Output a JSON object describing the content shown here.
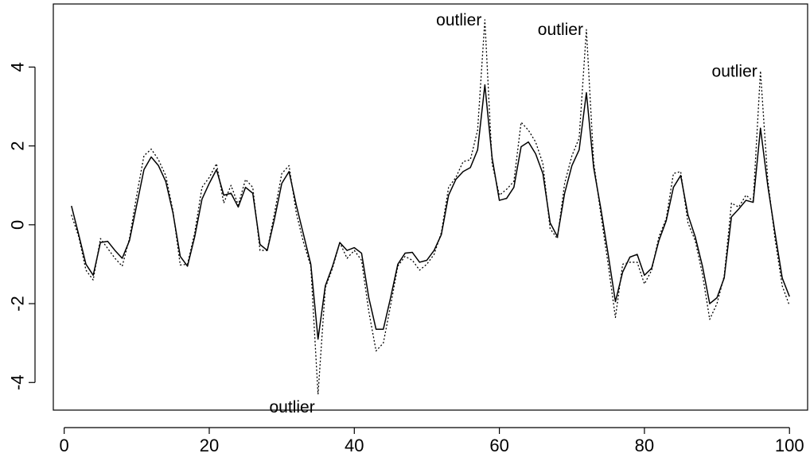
{
  "chart_data": {
    "type": "line",
    "title": "",
    "xlabel": "",
    "ylabel": "",
    "xlim": [
      -1.5,
      102.5
    ],
    "ylim": [
      -4.7,
      5.6
    ],
    "grid": false,
    "legend": "none",
    "x_ticks": [
      0,
      20,
      40,
      60,
      80,
      100
    ],
    "y_ticks": [
      -4,
      -2,
      0,
      2,
      4
    ],
    "x": [
      1,
      2,
      3,
      4,
      5,
      6,
      7,
      8,
      9,
      10,
      11,
      12,
      13,
      14,
      15,
      16,
      17,
      18,
      19,
      20,
      21,
      22,
      23,
      24,
      25,
      26,
      27,
      28,
      29,
      30,
      31,
      32,
      33,
      34,
      35,
      36,
      37,
      38,
      39,
      40,
      41,
      42,
      43,
      44,
      45,
      46,
      47,
      48,
      49,
      50,
      51,
      52,
      53,
      54,
      55,
      56,
      57,
      58,
      59,
      60,
      61,
      62,
      63,
      64,
      65,
      66,
      67,
      68,
      69,
      70,
      71,
      72,
      73,
      74,
      75,
      76,
      77,
      78,
      79,
      80,
      81,
      82,
      83,
      84,
      85,
      86,
      87,
      88,
      89,
      90,
      91,
      92,
      93,
      94,
      95,
      96,
      97,
      98,
      99,
      100
    ],
    "series": [
      {
        "style": "solid",
        "color": "#000000",
        "values": [
          0.48,
          -0.25,
          -1.0,
          -1.28,
          -0.45,
          -0.42,
          -0.65,
          -0.85,
          -0.4,
          0.5,
          1.4,
          1.72,
          1.5,
          1.1,
          0.3,
          -0.8,
          -1.05,
          -0.3,
          0.65,
          1.05,
          1.4,
          0.75,
          0.8,
          0.45,
          0.95,
          0.8,
          -0.5,
          -0.65,
          0.15,
          1.05,
          1.35,
          0.5,
          -0.25,
          -1.0,
          -2.9,
          -1.55,
          -1.05,
          -0.45,
          -0.65,
          -0.58,
          -0.72,
          -1.85,
          -2.65,
          -2.65,
          -1.85,
          -1.0,
          -0.72,
          -0.7,
          -0.95,
          -0.9,
          -0.65,
          -0.25,
          0.75,
          1.15,
          1.35,
          1.45,
          1.9,
          3.55,
          1.7,
          0.62,
          0.67,
          0.95,
          1.98,
          2.1,
          1.8,
          1.3,
          0.05,
          -0.3,
          0.8,
          1.5,
          1.9,
          3.35,
          1.45,
          0.4,
          -0.75,
          -1.95,
          -1.2,
          -0.82,
          -0.75,
          -1.28,
          -1.1,
          -0.4,
          0.1,
          0.95,
          1.25,
          0.25,
          -0.3,
          -1.05,
          -2.0,
          -1.85,
          -1.35,
          0.2,
          0.4,
          0.62,
          0.57,
          2.45,
          1.0,
          -0.2,
          -1.35,
          -1.82
        ]
      },
      {
        "style": "dotted",
        "color": "#000000",
        "values": [
          0.25,
          -0.3,
          -1.15,
          -1.4,
          -0.35,
          -0.6,
          -0.85,
          -1.05,
          -0.35,
          0.75,
          1.75,
          1.92,
          1.65,
          1.25,
          0.35,
          -1.02,
          -1.0,
          -0.2,
          0.95,
          1.2,
          1.55,
          0.55,
          1.0,
          0.5,
          1.15,
          0.95,
          -0.65,
          -0.65,
          0.3,
          1.3,
          1.5,
          0.3,
          -0.45,
          -1.05,
          -4.3,
          -1.6,
          -1.1,
          -0.45,
          -0.85,
          -0.65,
          -0.9,
          -2.2,
          -3.2,
          -3.0,
          -2.05,
          -1.05,
          -0.8,
          -0.9,
          -1.15,
          -1.0,
          -0.75,
          -0.2,
          0.95,
          1.2,
          1.6,
          1.65,
          2.4,
          5.2,
          1.55,
          0.75,
          0.9,
          1.1,
          2.6,
          2.4,
          2.1,
          1.55,
          -0.1,
          -0.35,
          1.05,
          1.75,
          2.2,
          4.95,
          1.6,
          0.25,
          -1.0,
          -2.35,
          -1.0,
          -0.95,
          -0.95,
          -1.5,
          -1.15,
          -0.3,
          0.15,
          1.3,
          1.35,
          0.05,
          -0.4,
          -1.25,
          -2.4,
          -2.0,
          -1.3,
          0.55,
          0.45,
          0.75,
          0.6,
          3.9,
          1.15,
          -0.35,
          -1.55,
          -2.05
        ]
      }
    ],
    "annotations": [
      {
        "text": "outlier",
        "x": 35,
        "y": -4.3,
        "anchor": "end",
        "dy": 16
      },
      {
        "text": "outlier",
        "x": 58,
        "y": 5.2,
        "anchor": "end",
        "dy": 0
      },
      {
        "text": "outlier",
        "x": 72,
        "y": 4.95,
        "anchor": "end",
        "dy": 0
      },
      {
        "text": "outlier",
        "x": 96,
        "y": 3.9,
        "anchor": "end",
        "dy": 0
      }
    ]
  }
}
